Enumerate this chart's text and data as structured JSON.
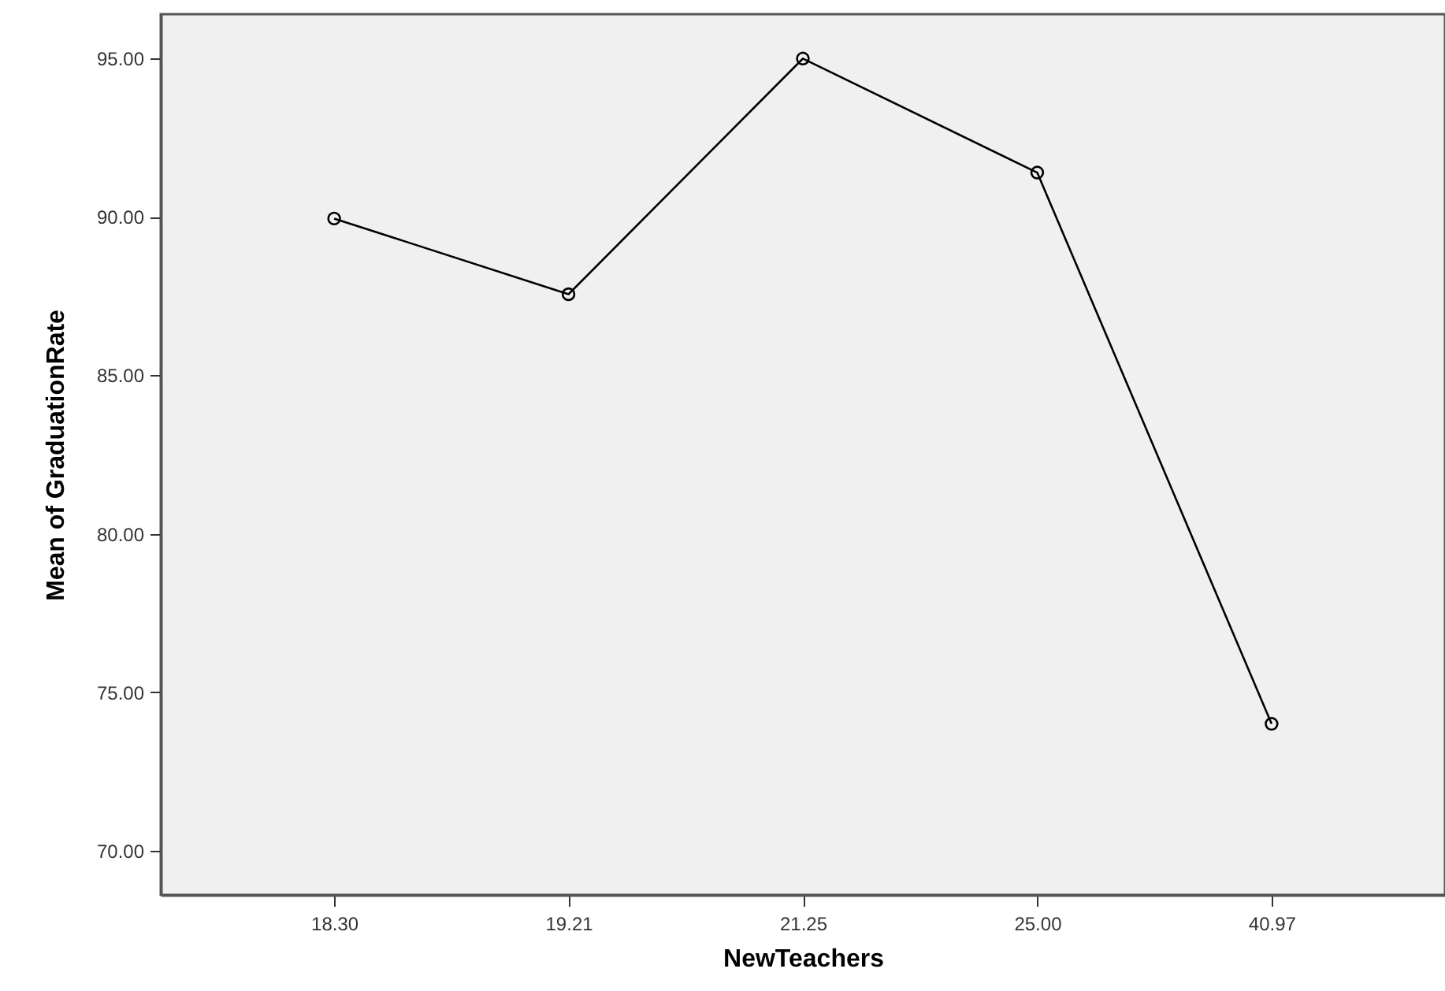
{
  "chart_data": {
    "type": "line",
    "xlabel": "NewTeachers",
    "ylabel": "Mean of GraduationRate",
    "categories": [
      "18.30",
      "19.21",
      "21.25",
      "25.00",
      "40.97"
    ],
    "series": [
      {
        "color": "#000000",
        "values": [
          89.95,
          87.56,
          95.0,
          91.4,
          74.0
        ]
      }
    ],
    "ylim": [
      68.6,
      96.4
    ],
    "yticks": [
      {
        "value": 70,
        "label": "70.00"
      },
      {
        "value": 75,
        "label": "75.00"
      },
      {
        "value": 80,
        "label": "80.00"
      },
      {
        "value": 85,
        "label": "85.00"
      },
      {
        "value": 90,
        "label": "90.00"
      },
      {
        "value": 95,
        "label": "95.00"
      }
    ],
    "marker": "circle",
    "line_style": "solid"
  }
}
